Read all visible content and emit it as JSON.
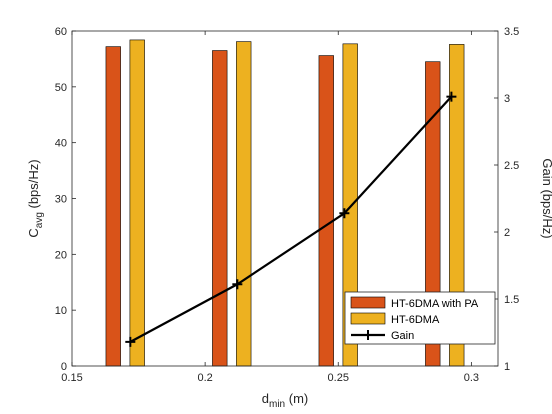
{
  "chart_data": {
    "type": "bar",
    "x": [
      0.17,
      0.21,
      0.25,
      0.29
    ],
    "bar_offsets": [
      -0.0045,
      0.0045
    ],
    "bar_width": 0.0055,
    "xlim": [
      0.15,
      0.31
    ],
    "xticks": [
      0.15,
      0.2,
      0.25,
      0.3
    ],
    "xtick_labels": [
      "0.15",
      "0.2",
      "0.25",
      "0.3"
    ],
    "xlabel": {
      "main": "d",
      "sub": "min",
      "rest": " (m)"
    },
    "ylim_left": [
      0,
      60
    ],
    "yticks_left": [
      0,
      10,
      20,
      30,
      40,
      50,
      60
    ],
    "yticks_left_labels": [
      "0",
      "10",
      "20",
      "30",
      "40",
      "50",
      "60"
    ],
    "ylabel_left": {
      "main": "C",
      "sub": "avg",
      "rest": " (bps/Hz)"
    },
    "ylim_right": [
      1,
      3.5
    ],
    "yticks_right": [
      1,
      1.5,
      2,
      2.5,
      3,
      3.5
    ],
    "yticks_right_labels": [
      "1",
      "1.5",
      "2",
      "2.5",
      "3",
      "3.5"
    ],
    "ylabel_right": "Gain (bps/Hz)",
    "legend_position": "bottom-right",
    "series": [
      {
        "name": "HT-6DMA with PA",
        "kind": "bar",
        "axis": "left",
        "color": "#D95319",
        "values": [
          57.2,
          56.5,
          55.6,
          54.5
        ]
      },
      {
        "name": "HT-6DMA",
        "kind": "bar",
        "axis": "left",
        "color": "#EDB120",
        "values": [
          58.4,
          58.1,
          57.7,
          57.6
        ]
      },
      {
        "name": "Gain",
        "kind": "line",
        "axis": "right",
        "color": "#000000",
        "marker": "plus",
        "x": [
          0.1719,
          0.2121,
          0.2523,
          0.2925
        ],
        "values": [
          1.18,
          1.61,
          2.14,
          3.01
        ]
      }
    ]
  }
}
